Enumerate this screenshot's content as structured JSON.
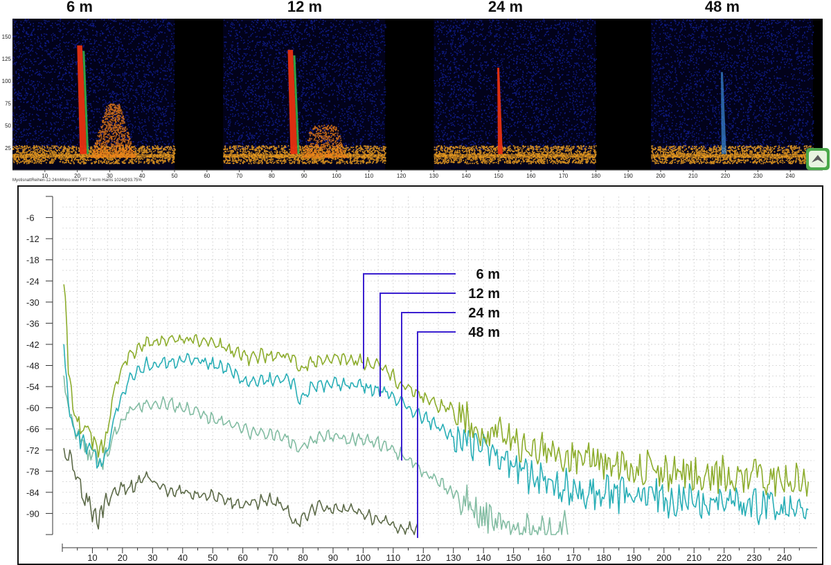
{
  "top_titles": [
    "6 m",
    "12 m",
    "24 m",
    "48 m"
  ],
  "spectrogram_caption": "MyotisnattReihen-12-24mMono.wav FFT 7-term Harris 1024@93.75%",
  "colors": {
    "background_panel": "#02021a",
    "noise_blue": "#1a2fd8",
    "floor_orange": "#f0a020",
    "call_red": "#e83010",
    "call_green": "#36b04a",
    "callout_line": "#3a1fd0",
    "grid": "#cfcfcf"
  },
  "icons": [
    "app-logo-icon"
  ],
  "chart_data": [
    {
      "type": "heatmap",
      "name": "spectrogram",
      "xlim": [
        0,
        250
      ],
      "ylim": [
        0,
        170
      ],
      "x_ticks": [
        10,
        20,
        30,
        40,
        50,
        60,
        70,
        80,
        90,
        100,
        110,
        120,
        130,
        140,
        150,
        160,
        170,
        180,
        190,
        200,
        210,
        220,
        230,
        240
      ],
      "y_ticks": [
        25,
        50,
        75,
        100,
        125,
        150
      ],
      "panels": [
        {
          "title": "6 m",
          "x_start": 0,
          "x_end": 50,
          "call_x": 21,
          "call_top": 140,
          "echo_x": 31,
          "echo_strength": 1.0
        },
        {
          "title": "12 m",
          "x_start": 65,
          "x_end": 115,
          "call_x": 86,
          "call_top": 135,
          "echo_x": 96,
          "echo_strength": 0.6
        },
        {
          "title": "24 m",
          "x_start": 130,
          "x_end": 180,
          "call_x": 150,
          "call_top": 115,
          "echo_x": 0,
          "echo_strength": 0
        },
        {
          "title": "48 m",
          "x_start": 197,
          "x_end": 247,
          "call_x": 219,
          "call_top": 110,
          "echo_x": 0,
          "echo_strength": 0
        }
      ]
    },
    {
      "type": "line",
      "name": "spectrum",
      "xlim": [
        0,
        250
      ],
      "ylim": [
        -96,
        0
      ],
      "x_ticks": [
        10,
        20,
        30,
        40,
        50,
        60,
        70,
        80,
        90,
        100,
        110,
        120,
        130,
        140,
        150,
        160,
        170,
        180,
        190,
        200,
        210,
        220,
        230,
        240
      ],
      "y_ticks": [
        -6,
        -12,
        -18,
        -24,
        -30,
        -36,
        -42,
        -48,
        -54,
        -60,
        -66,
        -72,
        -78,
        -84,
        -90
      ],
      "series": [
        {
          "name": "6 m",
          "color": "#8cac2c",
          "end_x": 248,
          "callout_x": 100,
          "x": [
            0.5,
            2,
            4,
            7,
            10,
            13,
            15,
            18,
            22,
            27,
            33,
            40,
            47,
            55,
            62,
            66,
            72,
            77,
            79,
            83,
            90,
            100,
            106,
            112,
            120,
            130,
            140,
            150,
            160,
            170,
            180,
            190,
            200,
            210,
            220,
            230,
            240,
            248
          ],
          "y": [
            -22,
            -48,
            -62,
            -66,
            -70,
            -72,
            -66,
            -52,
            -45,
            -42,
            -41,
            -40.5,
            -41,
            -43,
            -46,
            -45,
            -45,
            -46,
            -50,
            -47,
            -46,
            -47,
            -48,
            -53,
            -57,
            -61,
            -66,
            -70,
            -72,
            -74,
            -75.5,
            -77,
            -78,
            -78.5,
            -79,
            -79.5,
            -80,
            -81
          ]
        },
        {
          "name": "12 m",
          "color": "#28aeb6",
          "end_x": 248,
          "callout_x": 105,
          "x": [
            0.5,
            2,
            4,
            7,
            10,
            13,
            15,
            18,
            22,
            27,
            33,
            40,
            47,
            55,
            62,
            66,
            72,
            77,
            79,
            83,
            90,
            100,
            106,
            112,
            120,
            130,
            140,
            150,
            160,
            170,
            180,
            190,
            200,
            210,
            220,
            230,
            240,
            248
          ],
          "y": [
            -44,
            -58,
            -66,
            -70,
            -74,
            -76,
            -72,
            -60,
            -52,
            -48,
            -47,
            -46.5,
            -47,
            -49,
            -53,
            -52,
            -52,
            -53,
            -58,
            -54,
            -53,
            -54,
            -55,
            -58,
            -63,
            -68,
            -73,
            -78,
            -81,
            -83,
            -84,
            -85,
            -86,
            -86.5,
            -87,
            -87.5,
            -88,
            -89
          ]
        },
        {
          "name": "24 m",
          "color": "#82bca2",
          "end_x": 168,
          "callout_x": 112,
          "x": [
            0.5,
            2,
            4,
            7,
            10,
            13,
            15,
            18,
            22,
            27,
            33,
            40,
            47,
            55,
            62,
            66,
            72,
            77,
            79,
            83,
            90,
            100,
            106,
            112,
            120,
            130,
            135,
            140,
            145,
            150,
            155,
            160,
            168
          ],
          "y": [
            -50,
            -60,
            -66,
            -70,
            -74,
            -76,
            -73,
            -66,
            -61,
            -59,
            -58.5,
            -60,
            -62,
            -64.5,
            -67,
            -67.5,
            -68,
            -70,
            -72,
            -69,
            -68,
            -69,
            -70,
            -73,
            -78,
            -84,
            -88,
            -90,
            -92,
            -93,
            -93.5,
            -94,
            -94.5
          ]
        },
        {
          "name": "48 m",
          "color": "#5c6a48",
          "end_x": 118,
          "callout_x": 118,
          "x": [
            0.5,
            2,
            4,
            6,
            8,
            10,
            12,
            14,
            16,
            20,
            24,
            27,
            30,
            35,
            40,
            45,
            50,
            55,
            60,
            65,
            70,
            75,
            77,
            80,
            85,
            90,
            95,
            100,
            105,
            110,
            115,
            118
          ],
          "y": [
            -72,
            -74,
            -78,
            -82,
            -86,
            -90,
            -92,
            -88,
            -85,
            -83,
            -82,
            -79,
            -81,
            -83,
            -84,
            -84.5,
            -85,
            -86,
            -87.5,
            -87,
            -86,
            -89,
            -94,
            -91,
            -88,
            -88.5,
            -89,
            -90,
            -92,
            -93,
            -94.5,
            -95
          ]
        }
      ]
    }
  ]
}
